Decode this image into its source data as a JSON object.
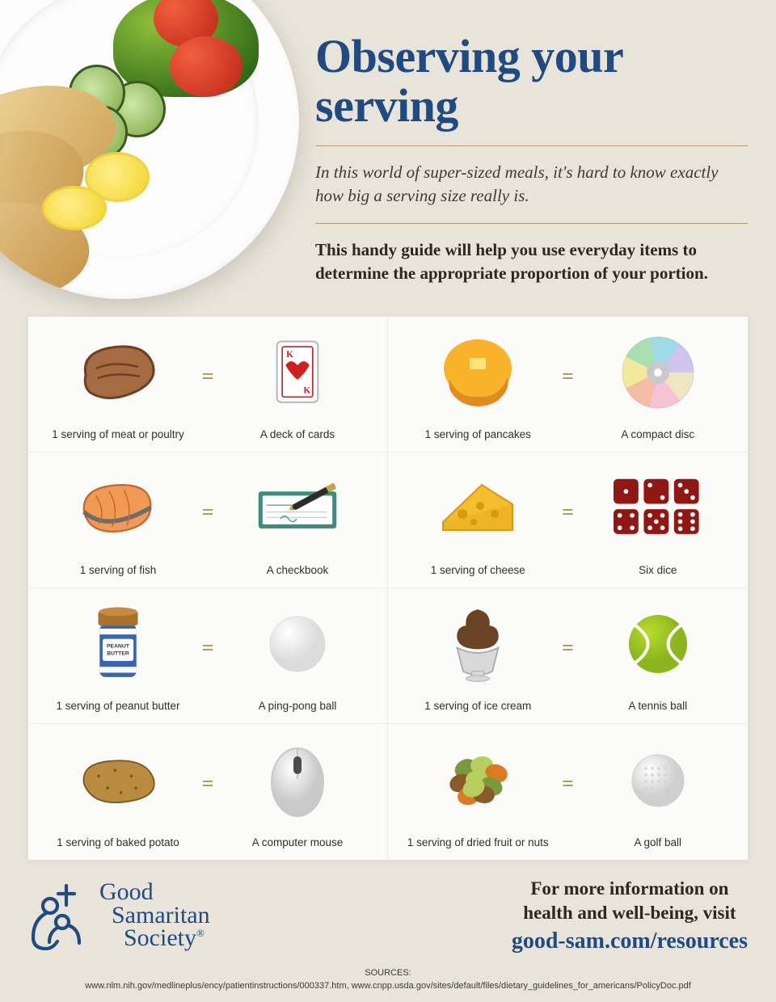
{
  "colors": {
    "background": "#e8e4d9",
    "panel": "#fbfbfa",
    "title": "#1f4a82",
    "rule": "#b49d69",
    "equals": "#b09552",
    "body_text": "#2b2822",
    "caption": "#2f2f2f",
    "grid_line": "#efece3"
  },
  "typography": {
    "title_fontsize": 58,
    "intro_fontsize": 21,
    "caption_fontsize": 13.5,
    "more_info_fontsize": 23,
    "link_fontsize": 28,
    "sources_fontsize": 11
  },
  "header": {
    "title": "Observing your serving",
    "intro_italic": "In this world of super-sized meals, it's hard to know exactly how big a serving size really is.",
    "intro_bold": "This handy guide will help you use everyday items to determine the appropriate proportion of your portion."
  },
  "equals_glyph": "=",
  "comparisons": [
    {
      "food_label": "1 serving of meat or poultry",
      "food_icon": "steak",
      "item_label": "A deck of cards",
      "item_icon": "cards"
    },
    {
      "food_label": "1 serving of pancakes",
      "food_icon": "pancake",
      "item_label": "A compact disc",
      "item_icon": "cd"
    },
    {
      "food_label": "1 serving of fish",
      "food_icon": "salmon",
      "item_label": "A checkbook",
      "item_icon": "checkbook"
    },
    {
      "food_label": "1 serving of cheese",
      "food_icon": "cheese",
      "item_label": "Six dice",
      "item_icon": "dice"
    },
    {
      "food_label": "1 serving of peanut butter",
      "food_icon": "peanut-butter",
      "item_label": "A ping-pong ball",
      "item_icon": "pingpong"
    },
    {
      "food_label": "1 serving of ice cream",
      "food_icon": "icecream",
      "item_label": "A tennis ball",
      "item_icon": "tennis"
    },
    {
      "food_label": "1 serving of baked potato",
      "food_icon": "potato",
      "item_label": "A computer mouse",
      "item_icon": "mouse"
    },
    {
      "food_label": "1 serving of dried fruit or nuts",
      "food_icon": "nuts",
      "item_label": "A golf ball",
      "item_icon": "golf"
    }
  ],
  "icon_colors": {
    "steak": {
      "fill": "#a56b42",
      "dark": "#6e3f21"
    },
    "cards": {
      "bg": "#ffffff",
      "border": "#b9b9b9",
      "suit": "#d11e1e"
    },
    "pancake": {
      "fill": "#f8b32a",
      "butter": "#fbe27a",
      "syrup": "#e08b1e"
    },
    "cd": {
      "arc_colors": [
        "#e9dfa3",
        "#f7a9c6",
        "#f4a07a",
        "#efe46b",
        "#7fd28e",
        "#6fcbe0",
        "#bda9e9"
      ],
      "ring": "#cfcfcf",
      "center": "#c9c9c9"
    },
    "salmon": {
      "fill": "#f09a55",
      "line": "#c36a2a",
      "skin": "#6d6d6d"
    },
    "checkbook": {
      "cover": "#3e8c7f",
      "paper": "#ffffff",
      "pen": "#2c2c2c",
      "pen_accent": "#caa247"
    },
    "cheese": {
      "fill": "#f4be2d",
      "dark": "#d99812"
    },
    "dice": {
      "fill": "#911713",
      "pip": "#ffffff"
    },
    "peanut-butter": {
      "jar": "#3765b3",
      "jar_stripe": "#ffffff",
      "lid": "#a8722e",
      "label_bg": "#ffffff",
      "label_text": "PEANUT BUTTER",
      "pb": "#c78a3f"
    },
    "pingpong": {
      "fill": "#ffffff",
      "edge": "#dcdcdc"
    },
    "icecream": {
      "scoop": "#6a4326",
      "cup": "#d8d8d8",
      "cup_edge": "#a9a9a9"
    },
    "tennis": {
      "fill": "#b9dc2e",
      "seam": "#ffffff",
      "shade": "#8ab51b"
    },
    "potato": {
      "fill": "#b98b3e",
      "dark": "#7a5621"
    },
    "mouse": {
      "body": "#f0f0f0",
      "shade": "#c9c9c9",
      "wheel": "#4d4d4d"
    },
    "nuts": {
      "c1": "#7a993a",
      "c2": "#b8cf60",
      "c3": "#dc7a23",
      "c4": "#8b5a2a"
    },
    "golf": {
      "fill": "#f3f3f3",
      "edge": "#cfcfcf",
      "dimple": "#d4d4d4"
    }
  },
  "footer": {
    "org_name_line1": "Good",
    "org_name_line2": "Samaritan",
    "org_name_line3": "Society",
    "registered": "®",
    "more_info_line1": "For more information on",
    "more_info_line2": "health and well-being, visit",
    "link": "good-sam.com/resources"
  },
  "sources": {
    "label": "SOURCES:",
    "text": "www.nlm.nih.gov/medlineplus/ency/patientinstructions/000337.htm, www.cnpp.usda.gov/sites/default/files/dietary_guidelines_for_americans/PolicyDoc.pdf"
  }
}
